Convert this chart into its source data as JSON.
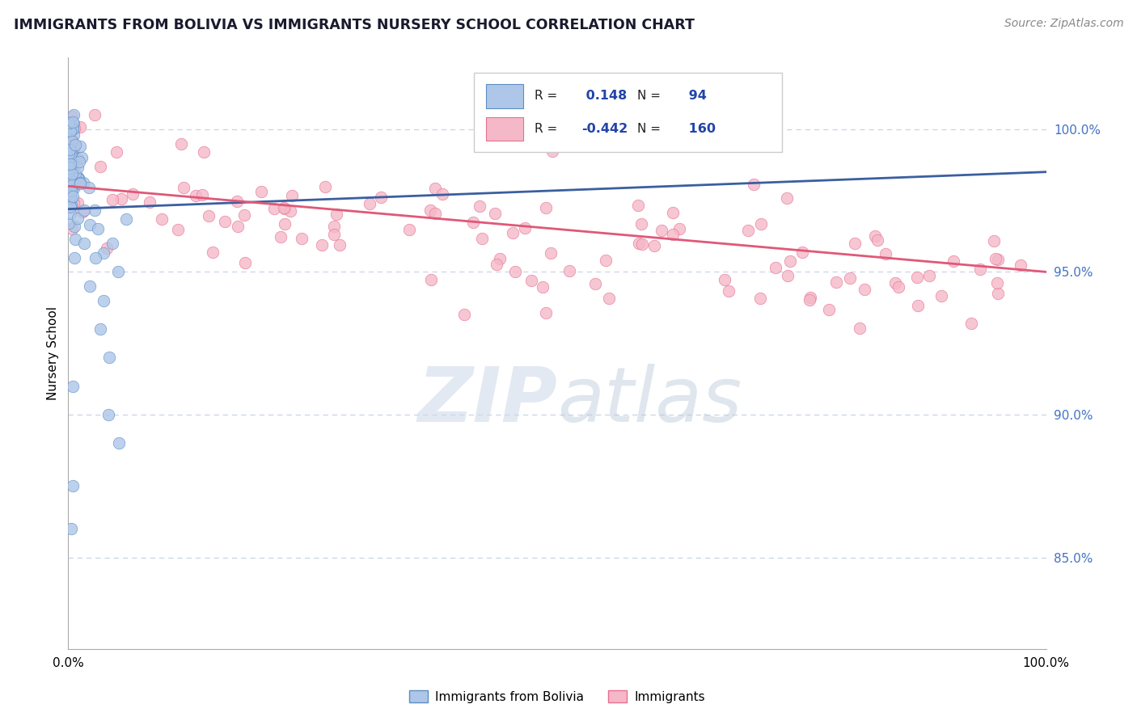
{
  "title": "IMMIGRANTS FROM BOLIVIA VS IMMIGRANTS NURSERY SCHOOL CORRELATION CHART",
  "source": "Source: ZipAtlas.com",
  "ylabel": "Nursery School",
  "legend_blue_label": "Immigrants from Bolivia",
  "legend_pink_label": "Immigrants",
  "blue_R": 0.148,
  "blue_N": 94,
  "pink_R": -0.442,
  "pink_N": 160,
  "watermark": "ZIPAtlas",
  "ytick_labels": [
    "85.0%",
    "90.0%",
    "95.0%",
    "100.0%"
  ],
  "ytick_values": [
    0.85,
    0.9,
    0.95,
    1.0
  ],
  "blue_color": "#aec6e8",
  "blue_edge_color": "#5b8ec4",
  "pink_color": "#f4b8c8",
  "pink_edge_color": "#e87090",
  "blue_line_color": "#3a5fa0",
  "pink_line_color": "#e05878",
  "xlim": [
    0.0,
    1.0
  ],
  "ylim": [
    0.818,
    1.025
  ],
  "title_color": "#1a1a2e",
  "source_color": "#888888",
  "ytick_color": "#4472c4",
  "grid_color": "#c8d4e8",
  "legend_text_color": "#2244aa",
  "watermark_color": "#ccd8e8"
}
